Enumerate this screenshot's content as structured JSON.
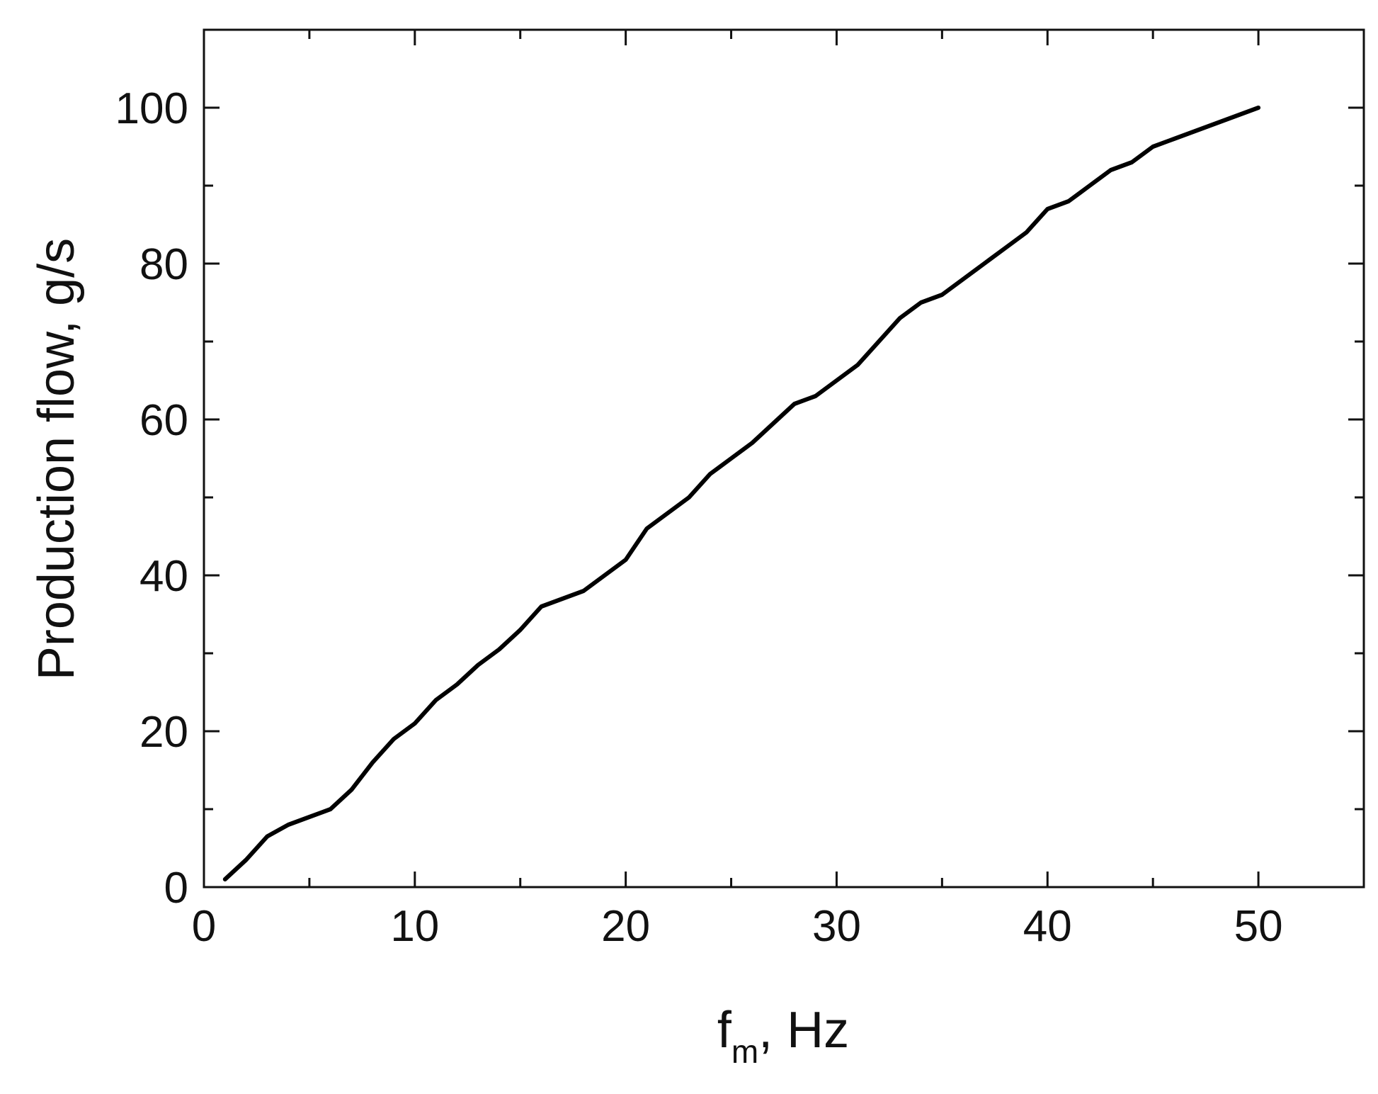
{
  "chart_data": {
    "type": "line",
    "title": "",
    "xlabel": {
      "main": "f",
      "subscript": "m",
      "suffix": ", Hz"
    },
    "ylabel": "Production flow, g/s",
    "xlim": [
      0,
      55
    ],
    "ylim": [
      0,
      110
    ],
    "x_ticks": [
      "0",
      "10",
      "20",
      "30",
      "40",
      "50"
    ],
    "y_ticks": [
      "0",
      "20",
      "40",
      "60",
      "80",
      "100"
    ],
    "x_major": [
      0,
      10,
      20,
      30,
      40,
      50
    ],
    "x_minor": [
      5,
      15,
      25,
      35,
      45
    ],
    "y_major": [
      0,
      20,
      40,
      60,
      80,
      100
    ],
    "y_minor": [
      10,
      30,
      50,
      70,
      90
    ],
    "grid": false,
    "line_color": "#000000",
    "series": [
      {
        "x": [
          1.0,
          2.0,
          3.0,
          4.0,
          5.0,
          6.0,
          7.0,
          8.0,
          9.0,
          10.0,
          11.0,
          12.0,
          13.0,
          14.0,
          15.0,
          16.0,
          17.0,
          18.0,
          19.0,
          20.0,
          21.0,
          22.0,
          23.0,
          24.0,
          25.0,
          26.0,
          27.0,
          28.0,
          29.0,
          30.0,
          31.0,
          32.0,
          33.0,
          34.0,
          35.0,
          36.0,
          37.0,
          38.0,
          39.0,
          40.0,
          41.0,
          42.0,
          43.0,
          44.0,
          45.0,
          46.0,
          47.0,
          48.0,
          49.0,
          50.0
        ],
        "values": [
          1.0,
          3.5,
          6.5,
          8.0,
          9.0,
          10.0,
          12.5,
          16.0,
          19.0,
          21.0,
          24.0,
          26.0,
          28.5,
          30.5,
          33.0,
          36.0,
          37.0,
          38.0,
          40.0,
          42.0,
          46.0,
          48.0,
          50.0,
          53.0,
          55.0,
          57.0,
          59.5,
          62.0,
          63.0,
          65.0,
          67.0,
          70.0,
          73.0,
          75.0,
          76.0,
          78.0,
          80.0,
          82.0,
          84.0,
          87.0,
          88.0,
          90.0,
          92.0,
          93.0,
          95.0,
          96.0,
          97.0,
          98.0,
          99.0,
          100.0
        ]
      }
    ]
  }
}
